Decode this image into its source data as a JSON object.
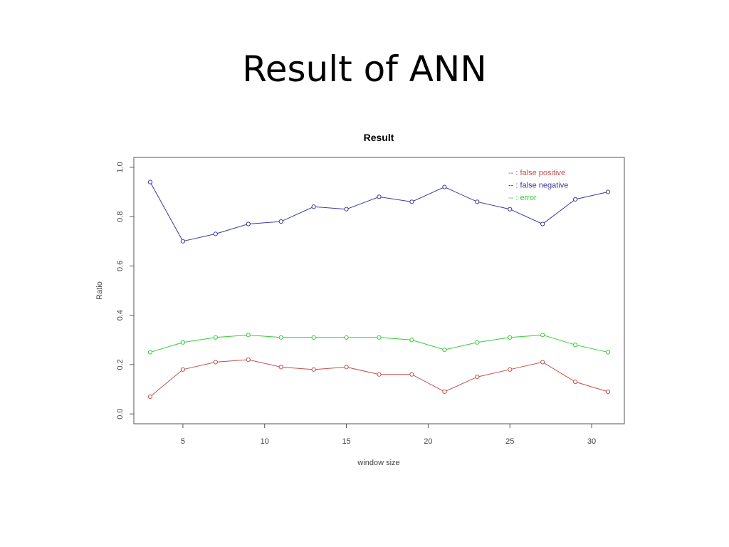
{
  "slide": {
    "title": "Result of ANN"
  },
  "chart_data": {
    "type": "line",
    "title": "Result",
    "xlabel": "window size",
    "ylabel": "Ratio",
    "xlim": [
      2,
      32
    ],
    "ylim": [
      -0.04,
      1.04
    ],
    "xticks": [
      5,
      10,
      15,
      20,
      25,
      30
    ],
    "xtick_labels": [
      "5",
      "10",
      "15",
      "20",
      "25",
      "30"
    ],
    "yticks": [
      0.0,
      0.2,
      0.4,
      0.6,
      0.8,
      1.0
    ],
    "ytick_labels": [
      "0.0",
      "0.2",
      "0.4",
      "0.6",
      "0.8",
      "1.0"
    ],
    "grid": false,
    "legend_position": "top-right",
    "x": [
      3,
      5,
      7,
      9,
      11,
      13,
      15,
      17,
      19,
      21,
      23,
      25,
      27,
      29,
      31
    ],
    "series": [
      {
        "name": "false positive",
        "legend_label": "-- : false positive",
        "color": "#c0504d",
        "values": [
          0.07,
          0.18,
          0.21,
          0.22,
          0.19,
          0.18,
          0.19,
          0.16,
          0.16,
          0.09,
          0.15,
          0.18,
          0.21,
          0.13,
          0.09
        ]
      },
      {
        "name": "false negative",
        "legend_label": "-- : false negative",
        "color": "#3a3a9e",
        "values": [
          0.94,
          0.7,
          0.73,
          0.77,
          0.78,
          0.84,
          0.83,
          0.88,
          0.86,
          0.92,
          0.86,
          0.83,
          0.77,
          0.87,
          0.9
        ]
      },
      {
        "name": "error",
        "legend_label": "-- : error",
        "color": "#33cc33",
        "values": [
          0.25,
          0.29,
          0.31,
          0.32,
          0.31,
          0.31,
          0.31,
          0.31,
          0.3,
          0.26,
          0.29,
          0.31,
          0.32,
          0.28,
          0.25
        ]
      }
    ]
  }
}
